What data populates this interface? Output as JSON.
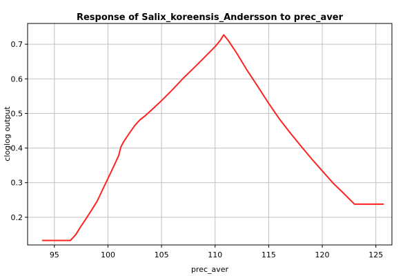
{
  "chart_data": {
    "type": "line",
    "title": "Response of Salix_koreensis_Andersson to prec_aver",
    "xlabel": "prec_aver",
    "ylabel": "cloglog output",
    "xlim": [
      92.5,
      126.5
    ],
    "ylim": [
      0.12,
      0.76
    ],
    "xticks": [
      95,
      100,
      105,
      110,
      115,
      120,
      125
    ],
    "yticks": [
      0.2,
      0.3,
      0.4,
      0.5,
      0.6,
      0.7
    ],
    "xtick_labels": [
      "95",
      "100",
      "105",
      "110",
      "115",
      "120",
      "125"
    ],
    "ytick_labels": [
      "0.2",
      "0.3",
      "0.4",
      "0.5",
      "0.6",
      "0.7"
    ],
    "grid": true,
    "series": [
      {
        "color": "#ff2020",
        "x": [
          93.9,
          96.5,
          97.0,
          97.5,
          98.0,
          98.5,
          99.0,
          99.5,
          100.0,
          100.5,
          101.0,
          101.2,
          101.5,
          102.0,
          102.5,
          103.0,
          103.5,
          104.0,
          105.0,
          106.0,
          107.0,
          108.0,
          109.0,
          110.0,
          110.5,
          110.8,
          111.2,
          112.0,
          113.0,
          114.0,
          115.0,
          116.0,
          117.0,
          118.0,
          119.0,
          120.0,
          121.0,
          122.0,
          123.0,
          124.0,
          125.7
        ],
        "y": [
          0.133,
          0.133,
          0.15,
          0.175,
          0.198,
          0.222,
          0.247,
          0.28,
          0.312,
          0.345,
          0.378,
          0.403,
          0.42,
          0.443,
          0.465,
          0.482,
          0.494,
          0.508,
          0.537,
          0.568,
          0.601,
          0.631,
          0.662,
          0.693,
          0.712,
          0.727,
          0.712,
          0.675,
          0.624,
          0.577,
          0.529,
          0.484,
          0.444,
          0.406,
          0.369,
          0.334,
          0.299,
          0.269,
          0.238,
          0.238,
          0.238
        ]
      }
    ]
  }
}
